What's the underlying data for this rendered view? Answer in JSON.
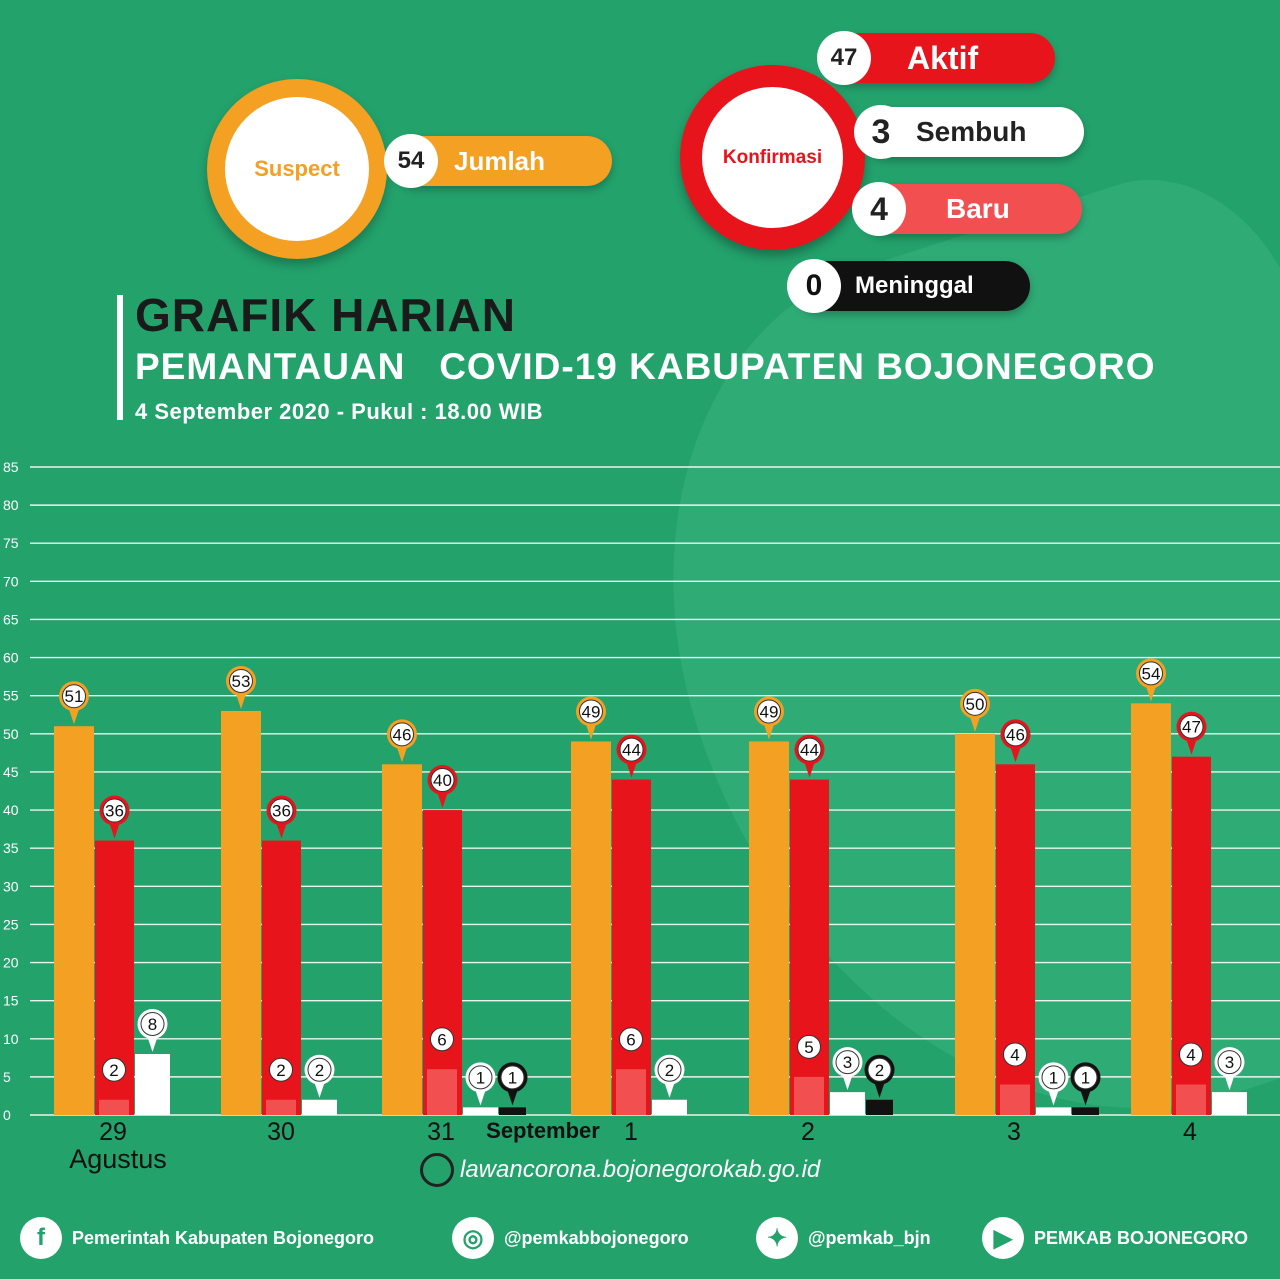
{
  "suspect": {
    "label": "Suspect",
    "count": "54",
    "count_label": "Jumlah"
  },
  "konfirmasi": {
    "label": "Konfirmasi",
    "aktif": {
      "value": "47",
      "label": "Aktif"
    },
    "sembuh": {
      "value": "3",
      "label": "Sembuh"
    },
    "baru": {
      "value": "4",
      "label": "Baru"
    },
    "meninggal": {
      "value": "0",
      "label": "Meninggal"
    }
  },
  "header": {
    "title": "GRAFIK HARIAN",
    "subtitle": "PEMANTAUAN   COVID-19 KABUPATEN BOJONEGORO",
    "dateline": "4 September 2020 - Pukul : 18.00 WIB"
  },
  "website": "lawancorona.bojonegorokab.go.id",
  "footer": {
    "facebook": "Pemerintah Kabupaten Bojonegoro",
    "instagram": "@pemkabbojonegoro",
    "twitter": "@pemkab_bjn",
    "youtube": "PEMKAB BOJONEGORO"
  },
  "colors": {
    "background": "#23a26c",
    "suspect": "#f4a023",
    "aktif": "#e8141b",
    "baru": "#f25050",
    "sembuh": "#ffffff",
    "meninggal": "#111111"
  },
  "chart_data": {
    "type": "bar",
    "categories": [
      "29",
      "30",
      "31",
      "1",
      "2",
      "3",
      "4"
    ],
    "month_labels": [
      "Agustus",
      "September"
    ],
    "ylim": [
      0,
      85
    ],
    "yticks": [
      0,
      5,
      10,
      15,
      20,
      25,
      30,
      35,
      40,
      45,
      50,
      55,
      60,
      65,
      70,
      75,
      80,
      85
    ],
    "grid": true,
    "series": [
      {
        "key": "suspect",
        "values": [
          51,
          53,
          46,
          49,
          49,
          50,
          54
        ]
      },
      {
        "key": "aktif",
        "values": [
          36,
          36,
          40,
          44,
          44,
          46,
          47
        ]
      },
      {
        "key": "baru",
        "values": [
          2,
          2,
          6,
          6,
          5,
          4,
          4
        ]
      },
      {
        "key": "sembuh",
        "values": [
          8,
          2,
          1,
          2,
          3,
          1,
          3
        ]
      },
      {
        "key": "meninggal",
        "values": [
          null,
          null,
          1,
          null,
          2,
          1,
          null
        ]
      }
    ]
  }
}
